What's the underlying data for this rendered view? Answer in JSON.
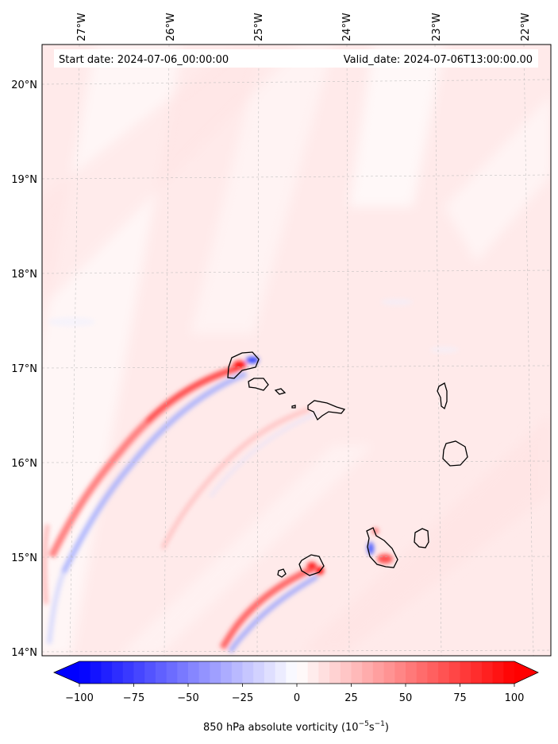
{
  "map": {
    "header": {
      "start_date": "Start date: 2024-07-06_00:00:00",
      "valid_date": "Valid_date: 2024-07-06T13:00:00.00"
    },
    "lon_labels": [
      "27°W",
      "26°W",
      "25°W",
      "24°W",
      "23°W",
      "22°W"
    ],
    "lat_labels": [
      "20°N",
      "19°N",
      "18°N",
      "17°N",
      "16°N",
      "15°N",
      "14°N"
    ],
    "gridlines": true,
    "colormap": "bwr"
  },
  "colorbar": {
    "ticks": [
      "−100",
      "−75",
      "−50",
      "−25",
      "0",
      "25",
      "50",
      "75",
      "100"
    ],
    "range": [
      -100,
      100
    ],
    "levels": 40,
    "extend": "both",
    "label": "850 hPa absolute vorticity (10",
    "label_exp1": "−5",
    "label_mid": "s",
    "label_exp2": "−1",
    "label_end": ")",
    "colors": {
      "low": "#0000ff",
      "mid": "#ffffff",
      "high": "#ff0000"
    }
  }
}
